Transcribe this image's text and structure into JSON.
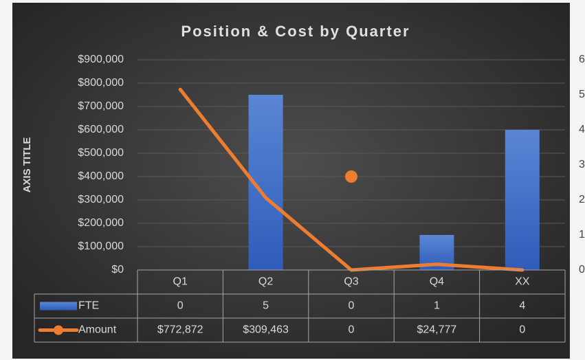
{
  "chart_data": {
    "type": "bar-line",
    "title": "Position & Cost by Quarter",
    "y_axis_title": "AXIS TITLE",
    "categories": [
      "Q1",
      "Q2",
      "Q3",
      "Q4",
      "XX"
    ],
    "series": [
      {
        "name": "FTE",
        "type": "bar",
        "axis": "y2",
        "color": "#4472c4",
        "values": [
          0,
          5,
          0,
          1,
          4
        ]
      },
      {
        "name": "Amount",
        "type": "line",
        "axis": "y",
        "color": "#ed7d31",
        "values": [
          772872,
          309463,
          0,
          24777,
          0
        ],
        "value_labels": [
          "$772,872",
          "$309,463",
          "0",
          "$24,777",
          "0"
        ]
      }
    ],
    "extra_point_values": [
      null,
      null,
      400000,
      null,
      null
    ],
    "extra_point_color": "#ed7d31",
    "ylim": [
      0,
      900000
    ],
    "yticks": [
      {
        "value": 0,
        "label": "$0"
      },
      {
        "value": 100000,
        "label": "$100,000"
      },
      {
        "value": 200000,
        "label": "$200,000"
      },
      {
        "value": 300000,
        "label": "$300,000"
      },
      {
        "value": 400000,
        "label": "$400,000"
      },
      {
        "value": 500000,
        "label": "$500,000"
      },
      {
        "value": 600000,
        "label": "$600,000"
      },
      {
        "value": 700000,
        "label": "$700,000"
      },
      {
        "value": 800000,
        "label": "$800,000"
      },
      {
        "value": 900000,
        "label": "$900,000"
      }
    ],
    "y2lim": [
      0,
      6
    ],
    "y2ticks": [
      0,
      1,
      2,
      3,
      4,
      5,
      6
    ],
    "grid": true,
    "data_table": true
  }
}
